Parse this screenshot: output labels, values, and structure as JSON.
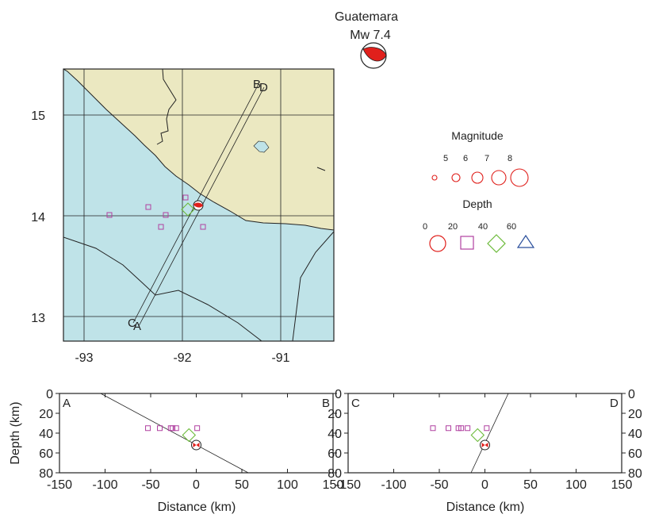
{
  "event": {
    "region": "Guatemara",
    "magnitude_label": "Mw  7.4"
  },
  "map": {
    "lon_ticks": [
      "-93",
      "-92",
      "-91"
    ],
    "lat_ticks": [
      "15",
      "14",
      "13"
    ],
    "profile_endpoints": [
      "A",
      "B",
      "C",
      "D"
    ]
  },
  "legend": {
    "magnitude_title": "Magnitude",
    "magnitude_values": [
      "5",
      "6",
      "7",
      "8"
    ],
    "depth_title": "Depth",
    "depth_values": [
      "0",
      "20",
      "40",
      "60"
    ]
  },
  "sections": {
    "left": {
      "start_label": "A",
      "end_label": "B"
    },
    "right": {
      "start_label": "C",
      "end_label": "D"
    },
    "xlabel": "Distance (km)",
    "ylabel": "Depth (km)",
    "x_ticks": [
      "-150",
      "-100",
      "-50",
      "0",
      "50",
      "100",
      "150"
    ],
    "y_ticks": [
      "0",
      "20",
      "40",
      "60",
      "80"
    ]
  },
  "colors": {
    "sea": "#bfe3e8",
    "land": "#ebe8c1",
    "beachball_fill": "#e0201c",
    "magnitude_symbol": "#e0201c",
    "depth_20": "#b040a0",
    "depth_40": "#6cba3a",
    "depth_60": "#2a4f9c"
  },
  "chart_data": [
    {
      "type": "scatter",
      "panel": "A-B cross section",
      "xlabel": "Distance (km)",
      "ylabel": "Depth (km)",
      "xlim": [
        -150,
        150
      ],
      "ylim": [
        80,
        0
      ],
      "series": [
        {
          "x": [
            -53,
            -40,
            -28,
            -26,
            -22,
            1
          ],
          "y": [
            35,
            35,
            35,
            35,
            35,
            35
          ]
        },
        {
          "x": [
            -8
          ],
          "y": [
            42
          ]
        },
        {
          "x": [
            0
          ],
          "y": [
            52
          ]
        }
      ]
    },
    {
      "type": "scatter",
      "panel": "C-D cross section",
      "xlabel": "Distance (km)",
      "ylabel": "Depth (km)",
      "xlim": [
        -150,
        150
      ],
      "ylim": [
        80,
        0
      ],
      "series": [
        {
          "x": [
            -57,
            -40,
            -29,
            -26,
            -19,
            2
          ],
          "y": [
            35,
            35,
            35,
            35,
            35,
            35
          ]
        },
        {
          "x": [
            -8
          ],
          "y": [
            42
          ]
        },
        {
          "x": [
            0
          ],
          "y": [
            52
          ]
        }
      ]
    }
  ]
}
